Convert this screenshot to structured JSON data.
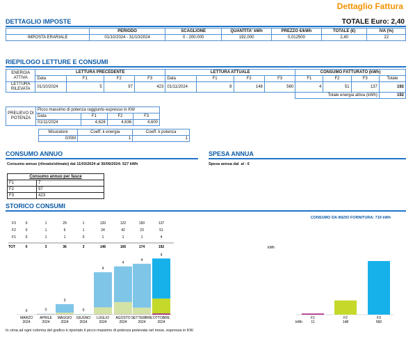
{
  "header": {
    "title": "Dettaglio Fattura"
  },
  "imposte": {
    "title": "DETTAGLIO IMPOSTE",
    "total": "TOTALE Euro: 2,40",
    "columns": [
      "PERIODO",
      "SCAGLIONE",
      "QUANTITA' kWh",
      "PREZZO €/kWh",
      "TOTALE (€)",
      "IVA (%)"
    ],
    "rows": [
      [
        "IMPOSTA ERARIALE",
        "01/10/2024 - 31/10/2024",
        "0 - 200.000",
        "192,000",
        "0,012500",
        "2,40",
        "22"
      ]
    ]
  },
  "letture": {
    "title": "RIEPILOGO LETTURE E CONSUMI",
    "corner": "ENERGIA ATTIVA",
    "groups": [
      "LETTURA PRECEDENTE",
      "LETTURA ATTUALE",
      "CONSUMO FATTURATO (kWh)"
    ],
    "subheads": [
      "Data",
      "F1",
      "F2",
      "F3",
      "Data",
      "F1",
      "F2",
      "F3",
      "F1",
      "F2",
      "F3",
      "Totale"
    ],
    "row_label": "LETTURA RILEVATA",
    "row": [
      "01/10/2024",
      "5",
      "97",
      "423",
      "01/11/2024",
      "8",
      "148",
      "560",
      "4",
      "51",
      "137",
      "192"
    ],
    "total_label": "Totale energia attiva (kWh)",
    "total": "192"
  },
  "potenza": {
    "label": "PRELIEVO DI POTENZA",
    "caption": "Picco massimo di potenza raggiunto espresso in KW",
    "head": [
      "Data",
      "F1",
      "F2",
      "F3"
    ],
    "row": [
      "01/11/2024",
      "4,628",
      "4,636",
      "4,600"
    ]
  },
  "misuratore": {
    "head": [
      "Misuratore",
      "Coeff. k energia",
      "Coeff. k potenza"
    ],
    "row": [
      "GISM",
      "1",
      "1"
    ]
  },
  "consumo_annuo": {
    "title": "CONSUMO ANNUO",
    "text": "Consumo annuo (rilevato/stimato) dal 11/03/2024 al 30/09/2024: 527 kWh",
    "table_title": "Consumo annuo per fasce",
    "rows": [
      [
        "F1",
        "7"
      ],
      [
        "F2",
        "97"
      ],
      [
        "F3",
        "423"
      ]
    ]
  },
  "spesa_annua": {
    "title": "SPESA ANNUA",
    "text": "Spesa annua dal  al : €"
  },
  "storico": {
    "title": "STORICO CONSUMI",
    "total_label": "TOT",
    "unit": "kWh",
    "months": [
      "MARZO",
      "APRILE",
      "MAGGIO",
      "GIUGNO",
      "LUGLIO",
      "AGOSTO",
      "SETTEMBRE",
      "OTTOBRE"
    ],
    "years": [
      "2024",
      "2024",
      "2024",
      "2024",
      "2024",
      "2024",
      "2024",
      "2024"
    ],
    "series": [
      {
        "name": "F3",
        "values": [
          0,
          1,
          29,
          1,
          120,
          122,
          150,
          137
        ],
        "color": "#7fc5e8",
        "current_color": "#16b1ea"
      },
      {
        "name": "F2",
        "values": [
          0,
          1,
          6,
          1,
          24,
          42,
          23,
          51
        ],
        "color": "#d3e3a6",
        "current_color": "#c5d92a"
      },
      {
        "name": "F1",
        "values": [
          0,
          1,
          1,
          0,
          1,
          1,
          1,
          4
        ],
        "color": "#c98bb8",
        "current_color": "#a3157c"
      }
    ],
    "totals": [
      0,
      3,
      36,
      3,
      146,
      165,
      174,
      192
    ],
    "peaks": [
      0,
      0,
      3,
      0,
      4,
      4,
      4,
      4
    ],
    "footnote": "In cima ad ogni colonna del grafico è riportato il picco massimo di potenza prelevata nel mese, espressa in KW."
  },
  "fornitura": {
    "title": "CONSUMO DA INIZIO FORNITURA: 719 kWh",
    "unit": "kWh",
    "categories": [
      "F1",
      "F2",
      "F3"
    ],
    "values": [
      11,
      148,
      560
    ],
    "colors": [
      "#a3157c",
      "#c5d92a",
      "#16b1ea"
    ]
  }
}
